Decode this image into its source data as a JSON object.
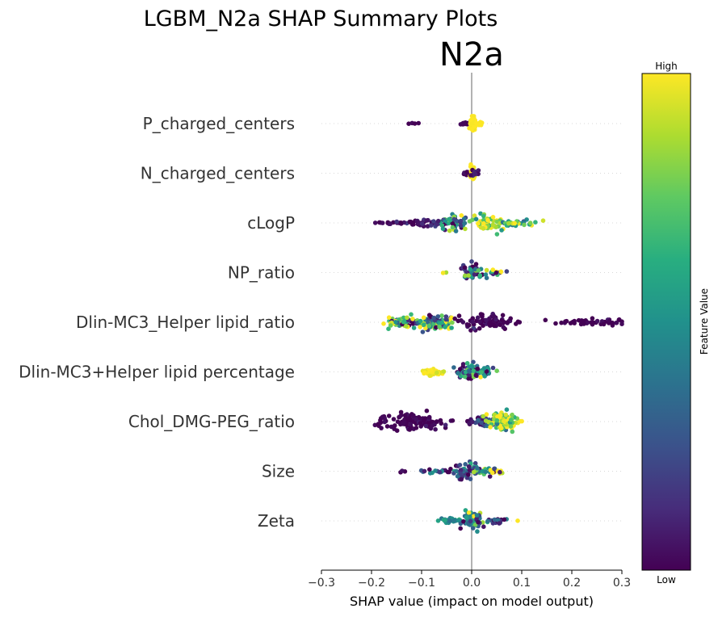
{
  "chart_data": {
    "type": "scatter",
    "title": "LGBM_N2a SHAP Summary Plots",
    "subtitle": "N2a",
    "xlabel": "SHAP value (impact on model output)",
    "xlim": [
      -0.3,
      0.3
    ],
    "xticks": [
      -0.3,
      -0.2,
      -0.1,
      0.0,
      0.1,
      0.2,
      0.3
    ],
    "xtick_labels": [
      "−0.3",
      "−0.2",
      "−0.1",
      "0.0",
      "0.1",
      "0.2",
      "0.3"
    ],
    "colorbar": {
      "label": "Feature Value",
      "high_label": "High",
      "low_label": "Low",
      "colormap": "viridis"
    },
    "features": [
      {
        "name": "P_charged_centers",
        "clusters": [
          {
            "x": -0.12,
            "sx": 0.005,
            "w": 0.15,
            "n": 4,
            "v": 0.0,
            "sv": 0.02
          },
          {
            "x": -0.015,
            "sx": 0.005,
            "w": 0.35,
            "n": 10,
            "v": 0.0,
            "sv": 0.02
          },
          {
            "x": 0.003,
            "sx": 0.003,
            "w": 1.0,
            "n": 50,
            "v": 1.0,
            "sv": 0.02
          },
          {
            "x": 0.015,
            "sx": 0.005,
            "w": 0.4,
            "n": 8,
            "v": 1.0,
            "sv": 0.02
          }
        ]
      },
      {
        "name": "N_charged_centers",
        "clusters": [
          {
            "x": -0.01,
            "sx": 0.004,
            "w": 0.3,
            "n": 6,
            "v": 0.0,
            "sv": 0.02
          },
          {
            "x": 0.002,
            "sx": 0.003,
            "w": 1.0,
            "n": 40,
            "v": 1.0,
            "sv": 0.05
          },
          {
            "x": 0.008,
            "sx": 0.004,
            "w": 0.5,
            "n": 10,
            "v": 0.1,
            "sv": 0.05
          }
        ]
      },
      {
        "name": "cLogP",
        "clusters": [
          {
            "x": -0.17,
            "sx": 0.018,
            "w": 0.15,
            "n": 14,
            "v": 0.0,
            "sv": 0.05
          },
          {
            "x": -0.1,
            "sx": 0.02,
            "w": 0.35,
            "n": 45,
            "v": 0.05,
            "sv": 0.08
          },
          {
            "x": -0.035,
            "sx": 0.015,
            "w": 1.0,
            "n": 55,
            "v": 0.3,
            "sv": 0.3
          },
          {
            "x": 0.03,
            "sx": 0.015,
            "w": 1.0,
            "n": 55,
            "v": 0.85,
            "sv": 0.15
          },
          {
            "x": 0.09,
            "sx": 0.025,
            "w": 0.35,
            "n": 30,
            "v": 0.7,
            "sv": 0.3
          }
        ]
      },
      {
        "name": "NP_ratio",
        "clusters": [
          {
            "x": -0.055,
            "sx": 0.004,
            "w": 0.1,
            "n": 2,
            "v": 0.95,
            "sv": 0.05
          },
          {
            "x": 0.0,
            "sx": 0.01,
            "w": 1.0,
            "n": 50,
            "v": 0.25,
            "sv": 0.3
          },
          {
            "x": 0.04,
            "sx": 0.015,
            "w": 0.35,
            "n": 15,
            "v": 0.6,
            "sv": 0.4
          }
        ]
      },
      {
        "name": "Dlin-MC3_Helper lipid_ratio",
        "clusters": [
          {
            "x": -0.145,
            "sx": 0.014,
            "w": 0.55,
            "n": 40,
            "v": 0.7,
            "sv": 0.35
          },
          {
            "x": -0.075,
            "sx": 0.022,
            "w": 1.0,
            "n": 120,
            "v": 0.5,
            "sv": 0.35
          },
          {
            "x": 0.04,
            "sx": 0.03,
            "w": 0.9,
            "n": 75,
            "v": 0.0,
            "sv": 0.05
          },
          {
            "x": 0.23,
            "sx": 0.045,
            "w": 0.35,
            "n": 50,
            "v": 0.0,
            "sv": 0.03
          }
        ]
      },
      {
        "name": "Dlin-MC3+Helper lipid percentage",
        "clusters": [
          {
            "x": -0.075,
            "sx": 0.014,
            "w": 0.45,
            "n": 35,
            "v": 1.0,
            "sv": 0.05
          },
          {
            "x": -0.01,
            "sx": 0.012,
            "w": 1.0,
            "n": 50,
            "v": 0.3,
            "sv": 0.3
          },
          {
            "x": 0.02,
            "sx": 0.014,
            "w": 0.9,
            "n": 45,
            "v": 0.5,
            "sv": 0.3
          }
        ]
      },
      {
        "name": "Chol_DMG-PEG_ratio",
        "clusters": [
          {
            "x": -0.115,
            "sx": 0.032,
            "w": 1.0,
            "n": 120,
            "v": 0.0,
            "sv": 0.03
          },
          {
            "x": 0.02,
            "sx": 0.014,
            "w": 0.6,
            "n": 50,
            "v": 0.2,
            "sv": 0.15
          },
          {
            "x": 0.06,
            "sx": 0.014,
            "w": 1.0,
            "n": 120,
            "v": 0.9,
            "sv": 0.2
          }
        ]
      },
      {
        "name": "Size",
        "clusters": [
          {
            "x": -0.14,
            "sx": 0.004,
            "w": 0.1,
            "n": 3,
            "v": 0.0,
            "sv": 0.02
          },
          {
            "x": -0.065,
            "sx": 0.018,
            "w": 0.3,
            "n": 18,
            "v": 0.2,
            "sv": 0.2
          },
          {
            "x": -0.01,
            "sx": 0.012,
            "w": 0.8,
            "n": 55,
            "v": 0.3,
            "sv": 0.3
          },
          {
            "x": 0.035,
            "sx": 0.018,
            "w": 0.45,
            "n": 30,
            "v": 0.6,
            "sv": 0.3
          }
        ]
      },
      {
        "name": "Zeta",
        "clusters": [
          {
            "x": -0.045,
            "sx": 0.014,
            "w": 0.3,
            "n": 20,
            "v": 0.45,
            "sv": 0.1
          },
          {
            "x": 0.002,
            "sx": 0.012,
            "w": 1.0,
            "n": 75,
            "v": 0.4,
            "sv": 0.25
          },
          {
            "x": 0.05,
            "sx": 0.012,
            "w": 0.35,
            "n": 18,
            "v": 0.15,
            "sv": 0.2
          },
          {
            "x": 0.093,
            "sx": 0.002,
            "w": 0.1,
            "n": 1,
            "v": 1.0,
            "sv": 0.0
          }
        ]
      }
    ]
  }
}
